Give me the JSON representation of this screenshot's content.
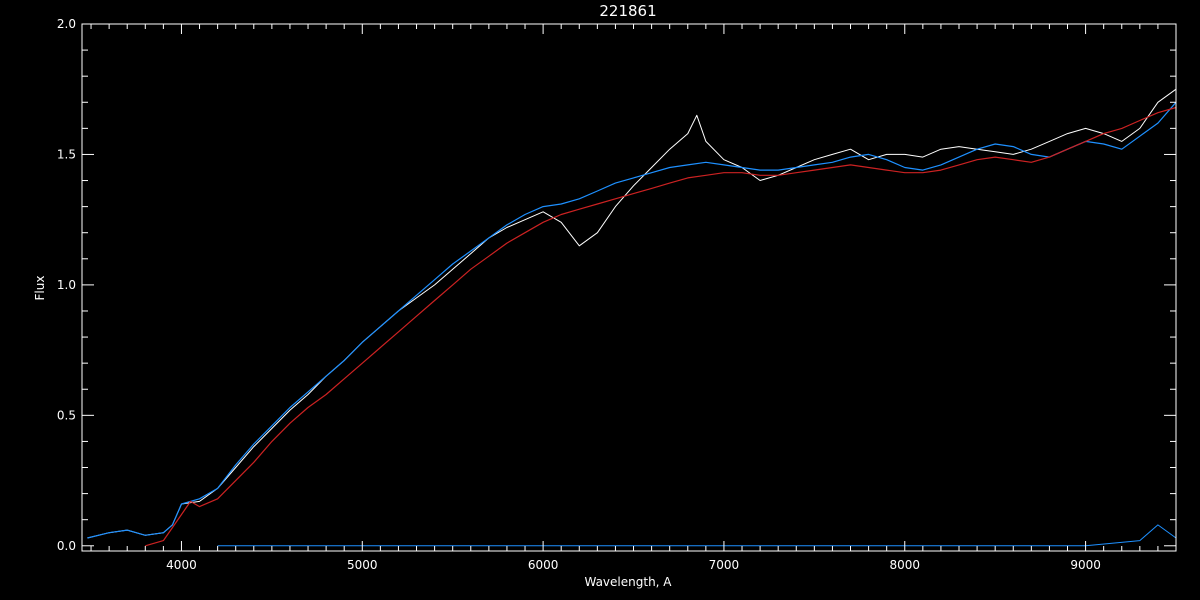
{
  "chart_data": {
    "type": "line",
    "title": "221861",
    "xlabel": "Wavelength, A",
    "ylabel": "Flux",
    "xlim": [
      3450,
      9500
    ],
    "ylim": [
      -0.02,
      2.0
    ],
    "xticks": [
      4000,
      5000,
      6000,
      7000,
      8000,
      9000
    ],
    "xtick_labels": [
      "4000",
      "5000",
      "6000",
      "7000",
      "8000",
      "9000"
    ],
    "yticks": [
      0.0,
      0.5,
      1.0,
      1.5,
      2.0
    ],
    "ytick_labels": [
      "0.0",
      "0.5",
      "1.0",
      "1.5",
      "2.0"
    ],
    "grid": false,
    "colors": {
      "background": "#000000",
      "axes": "#ffffff",
      "observed": "#ffffff",
      "model": "#1e90ff",
      "smoothed": "#cc2222",
      "error": "#1e90ff"
    },
    "series": [
      {
        "key": "observed",
        "x": [
          3480,
          3600,
          3700,
          3800,
          3900,
          3950,
          4000,
          4100,
          4200,
          4300,
          4400,
          4500,
          4600,
          4700,
          4800,
          4900,
          5000,
          5100,
          5200,
          5300,
          5400,
          5500,
          5600,
          5700,
          5800,
          5900,
          6000,
          6100,
          6200,
          6300,
          6400,
          6500,
          6600,
          6700,
          6800,
          6850,
          6900,
          7000,
          7100,
          7200,
          7300,
          7400,
          7500,
          7600,
          7700,
          7800,
          7900,
          8000,
          8100,
          8200,
          8300,
          8400,
          8500,
          8600,
          8700,
          8800,
          8900,
          9000,
          9100,
          9200,
          9300,
          9400,
          9500
        ],
        "y": [
          0.03,
          0.05,
          0.06,
          0.04,
          0.05,
          0.08,
          0.16,
          0.17,
          0.22,
          0.3,
          0.38,
          0.45,
          0.52,
          0.58,
          0.65,
          0.71,
          0.78,
          0.84,
          0.9,
          0.95,
          1.0,
          1.06,
          1.12,
          1.18,
          1.22,
          1.25,
          1.28,
          1.24,
          1.15,
          1.2,
          1.3,
          1.38,
          1.45,
          1.52,
          1.58,
          1.65,
          1.55,
          1.48,
          1.45,
          1.4,
          1.42,
          1.45,
          1.48,
          1.5,
          1.52,
          1.48,
          1.5,
          1.5,
          1.49,
          1.52,
          1.53,
          1.52,
          1.51,
          1.5,
          1.52,
          1.55,
          1.58,
          1.6,
          1.58,
          1.55,
          1.6,
          1.7,
          1.75
        ]
      },
      {
        "key": "model",
        "x": [
          3480,
          3600,
          3700,
          3800,
          3900,
          3950,
          4000,
          4100,
          4200,
          4300,
          4400,
          4500,
          4600,
          4700,
          4800,
          4900,
          5000,
          5100,
          5200,
          5300,
          5400,
          5500,
          5600,
          5700,
          5800,
          5900,
          6000,
          6100,
          6200,
          6300,
          6400,
          6500,
          6600,
          6700,
          6800,
          6900,
          7000,
          7100,
          7200,
          7300,
          7400,
          7500,
          7600,
          7700,
          7800,
          7900,
          8000,
          8100,
          8200,
          8300,
          8400,
          8500,
          8600,
          8700,
          8800,
          8900,
          9000,
          9100,
          9200,
          9300,
          9400,
          9500
        ],
        "y": [
          0.03,
          0.05,
          0.06,
          0.04,
          0.05,
          0.08,
          0.16,
          0.18,
          0.22,
          0.31,
          0.39,
          0.46,
          0.53,
          0.59,
          0.65,
          0.71,
          0.78,
          0.84,
          0.9,
          0.96,
          1.02,
          1.08,
          1.13,
          1.18,
          1.23,
          1.27,
          1.3,
          1.31,
          1.33,
          1.36,
          1.39,
          1.41,
          1.43,
          1.45,
          1.46,
          1.47,
          1.46,
          1.45,
          1.44,
          1.44,
          1.45,
          1.46,
          1.47,
          1.49,
          1.5,
          1.48,
          1.45,
          1.44,
          1.46,
          1.49,
          1.52,
          1.54,
          1.53,
          1.5,
          1.49,
          1.52,
          1.55,
          1.54,
          1.52,
          1.57,
          1.62,
          1.7
        ]
      },
      {
        "key": "smoothed",
        "x": [
          3800,
          3900,
          4000,
          4050,
          4100,
          4200,
          4300,
          4400,
          4500,
          4600,
          4700,
          4800,
          4900,
          5000,
          5100,
          5200,
          5300,
          5400,
          5500,
          5600,
          5700,
          5800,
          5900,
          6000,
          6100,
          6200,
          6300,
          6400,
          6500,
          6600,
          6700,
          6800,
          6900,
          7000,
          7100,
          7200,
          7300,
          7400,
          7500,
          7600,
          7700,
          7800,
          7900,
          8000,
          8100,
          8200,
          8300,
          8400,
          8500,
          8600,
          8700,
          8800,
          8900,
          9000,
          9100,
          9200,
          9300,
          9400,
          9500
        ],
        "y": [
          0.0,
          0.02,
          0.12,
          0.17,
          0.15,
          0.18,
          0.25,
          0.32,
          0.4,
          0.47,
          0.53,
          0.58,
          0.64,
          0.7,
          0.76,
          0.82,
          0.88,
          0.94,
          1.0,
          1.06,
          1.11,
          1.16,
          1.2,
          1.24,
          1.27,
          1.29,
          1.31,
          1.33,
          1.35,
          1.37,
          1.39,
          1.41,
          1.42,
          1.43,
          1.43,
          1.42,
          1.42,
          1.43,
          1.44,
          1.45,
          1.46,
          1.45,
          1.44,
          1.43,
          1.43,
          1.44,
          1.46,
          1.48,
          1.49,
          1.48,
          1.47,
          1.49,
          1.52,
          1.55,
          1.58,
          1.6,
          1.63,
          1.66,
          1.68
        ]
      },
      {
        "key": "error",
        "x": [
          4200,
          5000,
          6000,
          7000,
          8000,
          9000,
          9300,
          9400,
          9500
        ],
        "y": [
          0.0,
          0.0,
          0.0,
          0.0,
          0.0,
          0.0,
          0.02,
          0.08,
          0.03
        ]
      }
    ]
  }
}
